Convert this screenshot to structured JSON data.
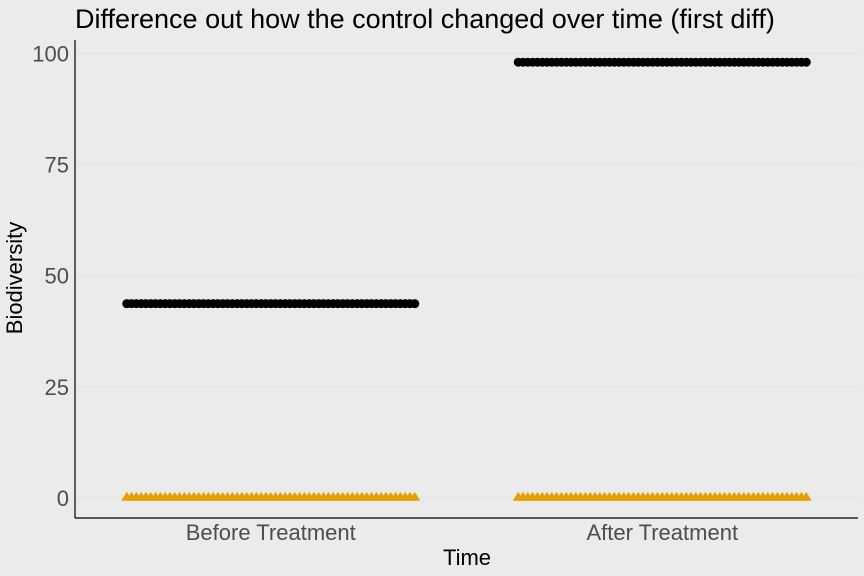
{
  "chart_data": {
    "type": "scatter",
    "title": "Difference out how the control changed over time (first diff)",
    "xlabel": "Time",
    "ylabel": "Biodiversity",
    "categories": [
      "Before Treatment",
      "After Treatment"
    ],
    "ylim": [
      -4.5,
      103
    ],
    "yticks": [
      0,
      25,
      50,
      75,
      100
    ],
    "grid": true,
    "legend": "none",
    "series": [
      {
        "shape": "circle",
        "color": "#000000",
        "values": [
          43.7,
          98
        ]
      },
      {
        "shape": "triangle",
        "color": "#e69f00",
        "values": [
          0.4,
          0.4
        ]
      }
    ]
  }
}
